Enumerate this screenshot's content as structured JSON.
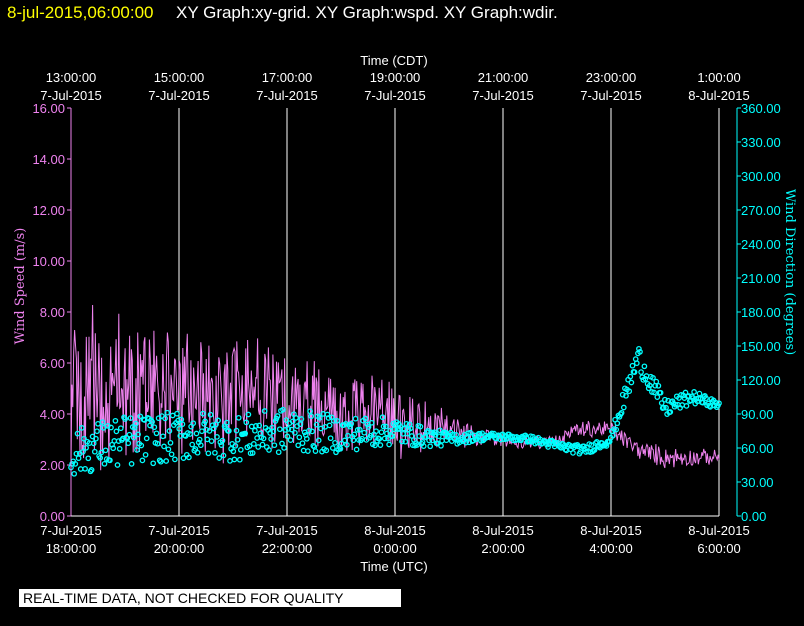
{
  "header": {
    "timestamp": "8-jul-2015,06:00:00",
    "graph_titles": "XY Graph:xy-grid.  XY Graph:wspd.  XY Graph:wdir."
  },
  "disclaimer": "REAL-TIME DATA, NOT CHECKED FOR QUALITY",
  "colors": {
    "background": "#000000",
    "timestamp": "#ffff00",
    "wind_speed": "#ee82ee",
    "wind_direction": "#00ffff",
    "grid": "#ffffff",
    "text": "#ffffff"
  },
  "chart_data": {
    "type": "line+scatter",
    "top_axis": {
      "label": "Time (CDT)",
      "ticks": [
        [
          "13:00:00",
          "7-Jul-2015"
        ],
        [
          "15:00:00",
          "7-Jul-2015"
        ],
        [
          "17:00:00",
          "7-Jul-2015"
        ],
        [
          "19:00:00",
          "7-Jul-2015"
        ],
        [
          "21:00:00",
          "7-Jul-2015"
        ],
        [
          "23:00:00",
          "7-Jul-2015"
        ],
        [
          "1:00:00",
          "8-Jul-2015"
        ]
      ]
    },
    "bottom_axis": {
      "label": "Time (UTC)",
      "ticks": [
        [
          "7-Jul-2015",
          "18:00:00"
        ],
        [
          "7-Jul-2015",
          "20:00:00"
        ],
        [
          "7-Jul-2015",
          "22:00:00"
        ],
        [
          "8-Jul-2015",
          "0:00:00"
        ],
        [
          "8-Jul-2015",
          "2:00:00"
        ],
        [
          "8-Jul-2015",
          "4:00:00"
        ],
        [
          "8-Jul-2015",
          "6:00:00"
        ]
      ],
      "range_hours_utc": [
        18,
        30
      ],
      "grid": true
    },
    "left_axis": {
      "label": "Wind Speed (m/s)",
      "range": [
        0,
        16
      ],
      "ticks": [
        "0.00",
        "2.00",
        "4.00",
        "6.00",
        "8.00",
        "10.00",
        "12.00",
        "14.00",
        "16.00"
      ]
    },
    "right_axis": {
      "label": "Wind Direction (degrees)",
      "range": [
        0,
        360
      ],
      "ticks": [
        "0.00",
        "30.00",
        "60.00",
        "90.00",
        "120.00",
        "150.00",
        "180.00",
        "210.00",
        "240.00",
        "270.00",
        "300.00",
        "330.00",
        "360.00"
      ]
    },
    "series": [
      {
        "name": "wspd",
        "kind": "line",
        "axis": "left",
        "x_hours_utc": [
          18.0,
          18.5,
          19.0,
          19.5,
          20.0,
          20.5,
          21.0,
          21.5,
          22.0,
          22.5,
          23.0,
          23.5,
          24.0,
          24.5,
          25.0,
          25.5,
          26.0,
          26.5,
          27.0,
          27.5,
          28.0,
          28.5,
          29.0,
          29.5,
          30.0
        ],
        "mean": [
          4.8,
          5.0,
          5.2,
          5.0,
          4.7,
          4.8,
          4.6,
          4.6,
          4.7,
          4.4,
          4.1,
          4.0,
          3.7,
          3.5,
          3.4,
          3.1,
          3.0,
          2.8,
          3.0,
          3.4,
          3.4,
          2.6,
          2.3,
          2.3,
          2.3
        ],
        "spread": [
          3.3,
          3.5,
          3.3,
          2.9,
          2.7,
          2.8,
          2.6,
          2.5,
          2.3,
          2.2,
          2.0,
          1.9,
          1.7,
          1.2,
          0.8,
          0.5,
          0.3,
          0.3,
          0.3,
          0.4,
          0.4,
          0.4,
          0.5,
          0.4,
          0.3
        ]
      },
      {
        "name": "wdir",
        "kind": "scatter",
        "axis": "right",
        "x_hours_utc": [
          18.0,
          18.5,
          19.0,
          19.5,
          20.0,
          20.5,
          21.0,
          21.5,
          22.0,
          22.5,
          23.0,
          23.5,
          24.0,
          24.5,
          25.0,
          25.5,
          26.0,
          26.5,
          27.0,
          27.5,
          28.0,
          28.5,
          29.0,
          29.5,
          30.0
        ],
        "mean": [
          55,
          62,
          66,
          68,
          70,
          72,
          68,
          72,
          76,
          74,
          72,
          74,
          75,
          70,
          68,
          70,
          70,
          68,
          62,
          58,
          68,
          140,
          95,
          105,
          98
        ],
        "spread": [
          20,
          22,
          23,
          22,
          22,
          20,
          20,
          20,
          20,
          18,
          16,
          14,
          12,
          9,
          6,
          4,
          3,
          3,
          4,
          4,
          5,
          12,
          8,
          6,
          3
        ]
      }
    ]
  }
}
